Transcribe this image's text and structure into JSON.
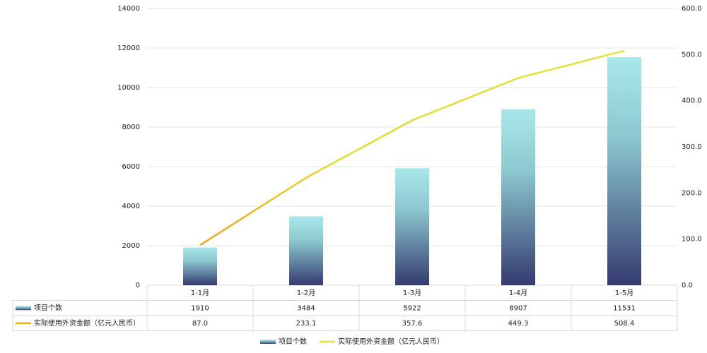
{
  "chart_data": {
    "type": "bar-line",
    "categories": [
      "1-1月",
      "1-2月",
      "1-3月",
      "1-4月",
      "1-5月"
    ],
    "series": [
      {
        "name": "项目个数",
        "type": "bar",
        "color": "#3a3f73",
        "values": [
          1910,
          3484,
          5922,
          8907,
          11531
        ]
      },
      {
        "name": "实际使用外资金额（亿元人民币）",
        "type": "line",
        "axis": "y2",
        "color": "#e6e02e",
        "values": [
          87.0,
          233.1,
          357.6,
          449.3,
          508.4
        ],
        "value_labels": [
          "87.0",
          "233.1",
          "357.6",
          "449.3",
          "508.4"
        ]
      }
    ],
    "ylim": [
      0,
      14000
    ],
    "yticks": [
      0,
      2000,
      4000,
      6000,
      8000,
      10000,
      12000,
      14000
    ],
    "y2lim": [
      0,
      600
    ],
    "y2ticks": [
      {
        "value": 0,
        "label": "0.0"
      },
      {
        "value": 100,
        "label": "100.0"
      },
      {
        "value": 200,
        "label": "200.0"
      },
      {
        "value": 300,
        "label": "300.0"
      },
      {
        "value": 400,
        "label": "400.0"
      },
      {
        "value": 500,
        "label": "500.0"
      },
      {
        "value": 600,
        "label": "600.0"
      }
    ],
    "grid": true,
    "legend": "bottom"
  }
}
